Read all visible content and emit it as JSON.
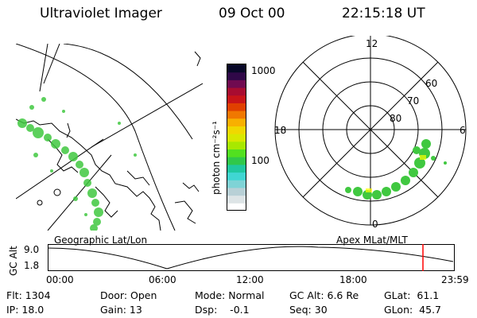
{
  "header": {
    "instrument": "Ultraviolet Imager",
    "date": "09 Oct 00",
    "time": "22:15:18 UT"
  },
  "colorbar": {
    "unit_label": "photon cm⁻²s⁻¹",
    "ticks": [
      "1000",
      "100"
    ],
    "scale": "log",
    "colors": [
      "#ffffff",
      "#dde4e6",
      "#b8d0d6",
      "#7fd3d6",
      "#40d6d2",
      "#20c8a0",
      "#30c84a",
      "#52e020",
      "#a8e800",
      "#d8e800",
      "#f0d800",
      "#f8b000",
      "#f07800",
      "#e04000",
      "#c81418",
      "#a80c30",
      "#700a50",
      "#300848",
      "#080828"
    ]
  },
  "left_panel": {
    "name": "geographic-map",
    "caption": "Geographic Lat/Lon",
    "aurora_color": "#40c840"
  },
  "right_panel": {
    "name": "polar-mlt-plot",
    "caption": "Apex MLat/MLT",
    "mlt_labels": {
      "top": "12",
      "left": "18",
      "right": "6",
      "bottom": "0"
    },
    "lat_labels": [
      "60",
      "70",
      "80"
    ]
  },
  "altitude_plot": {
    "axis_label": "GC Alt",
    "y_ticks": [
      "9.0",
      "1.8"
    ],
    "x_ticks": [
      "00:00",
      "06:00",
      "12:00",
      "18:00",
      "23:59"
    ],
    "marker_color": "#ff0000"
  },
  "info": {
    "flt": "Flt: 1304",
    "ip": "IP: 18.0",
    "door": "Door: Open",
    "gain": "Gain: 13",
    "mode": "Mode: Normal",
    "dsp": "Dsp:    -0.1",
    "gcalt": "GC Alt: 6.6 Re",
    "seq": "Seq: 30",
    "glat": "GLat:  61.1",
    "glon": "GLon:  45.7"
  }
}
